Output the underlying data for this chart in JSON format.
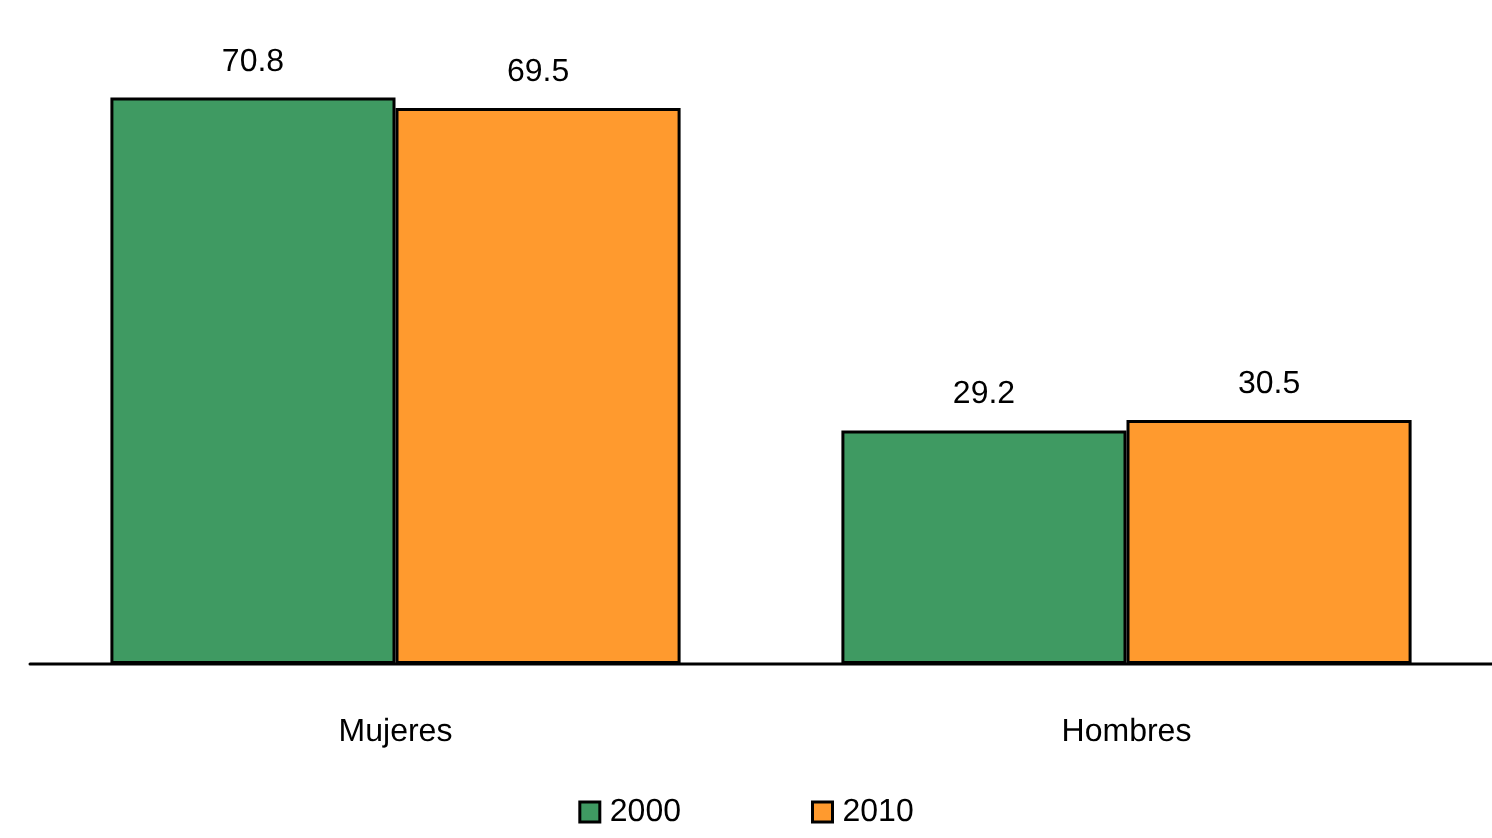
{
  "chart_data": {
    "type": "bar",
    "categories": [
      "Mujeres",
      "Hombres"
    ],
    "series": [
      {
        "name": "2000",
        "color": "#3f9a62",
        "values": [
          70.8,
          29.2
        ]
      },
      {
        "name": "2010",
        "color": "#ff9a2e",
        "values": [
          69.5,
          30.5
        ]
      }
    ],
    "data_labels": true,
    "legend": "bottom"
  }
}
